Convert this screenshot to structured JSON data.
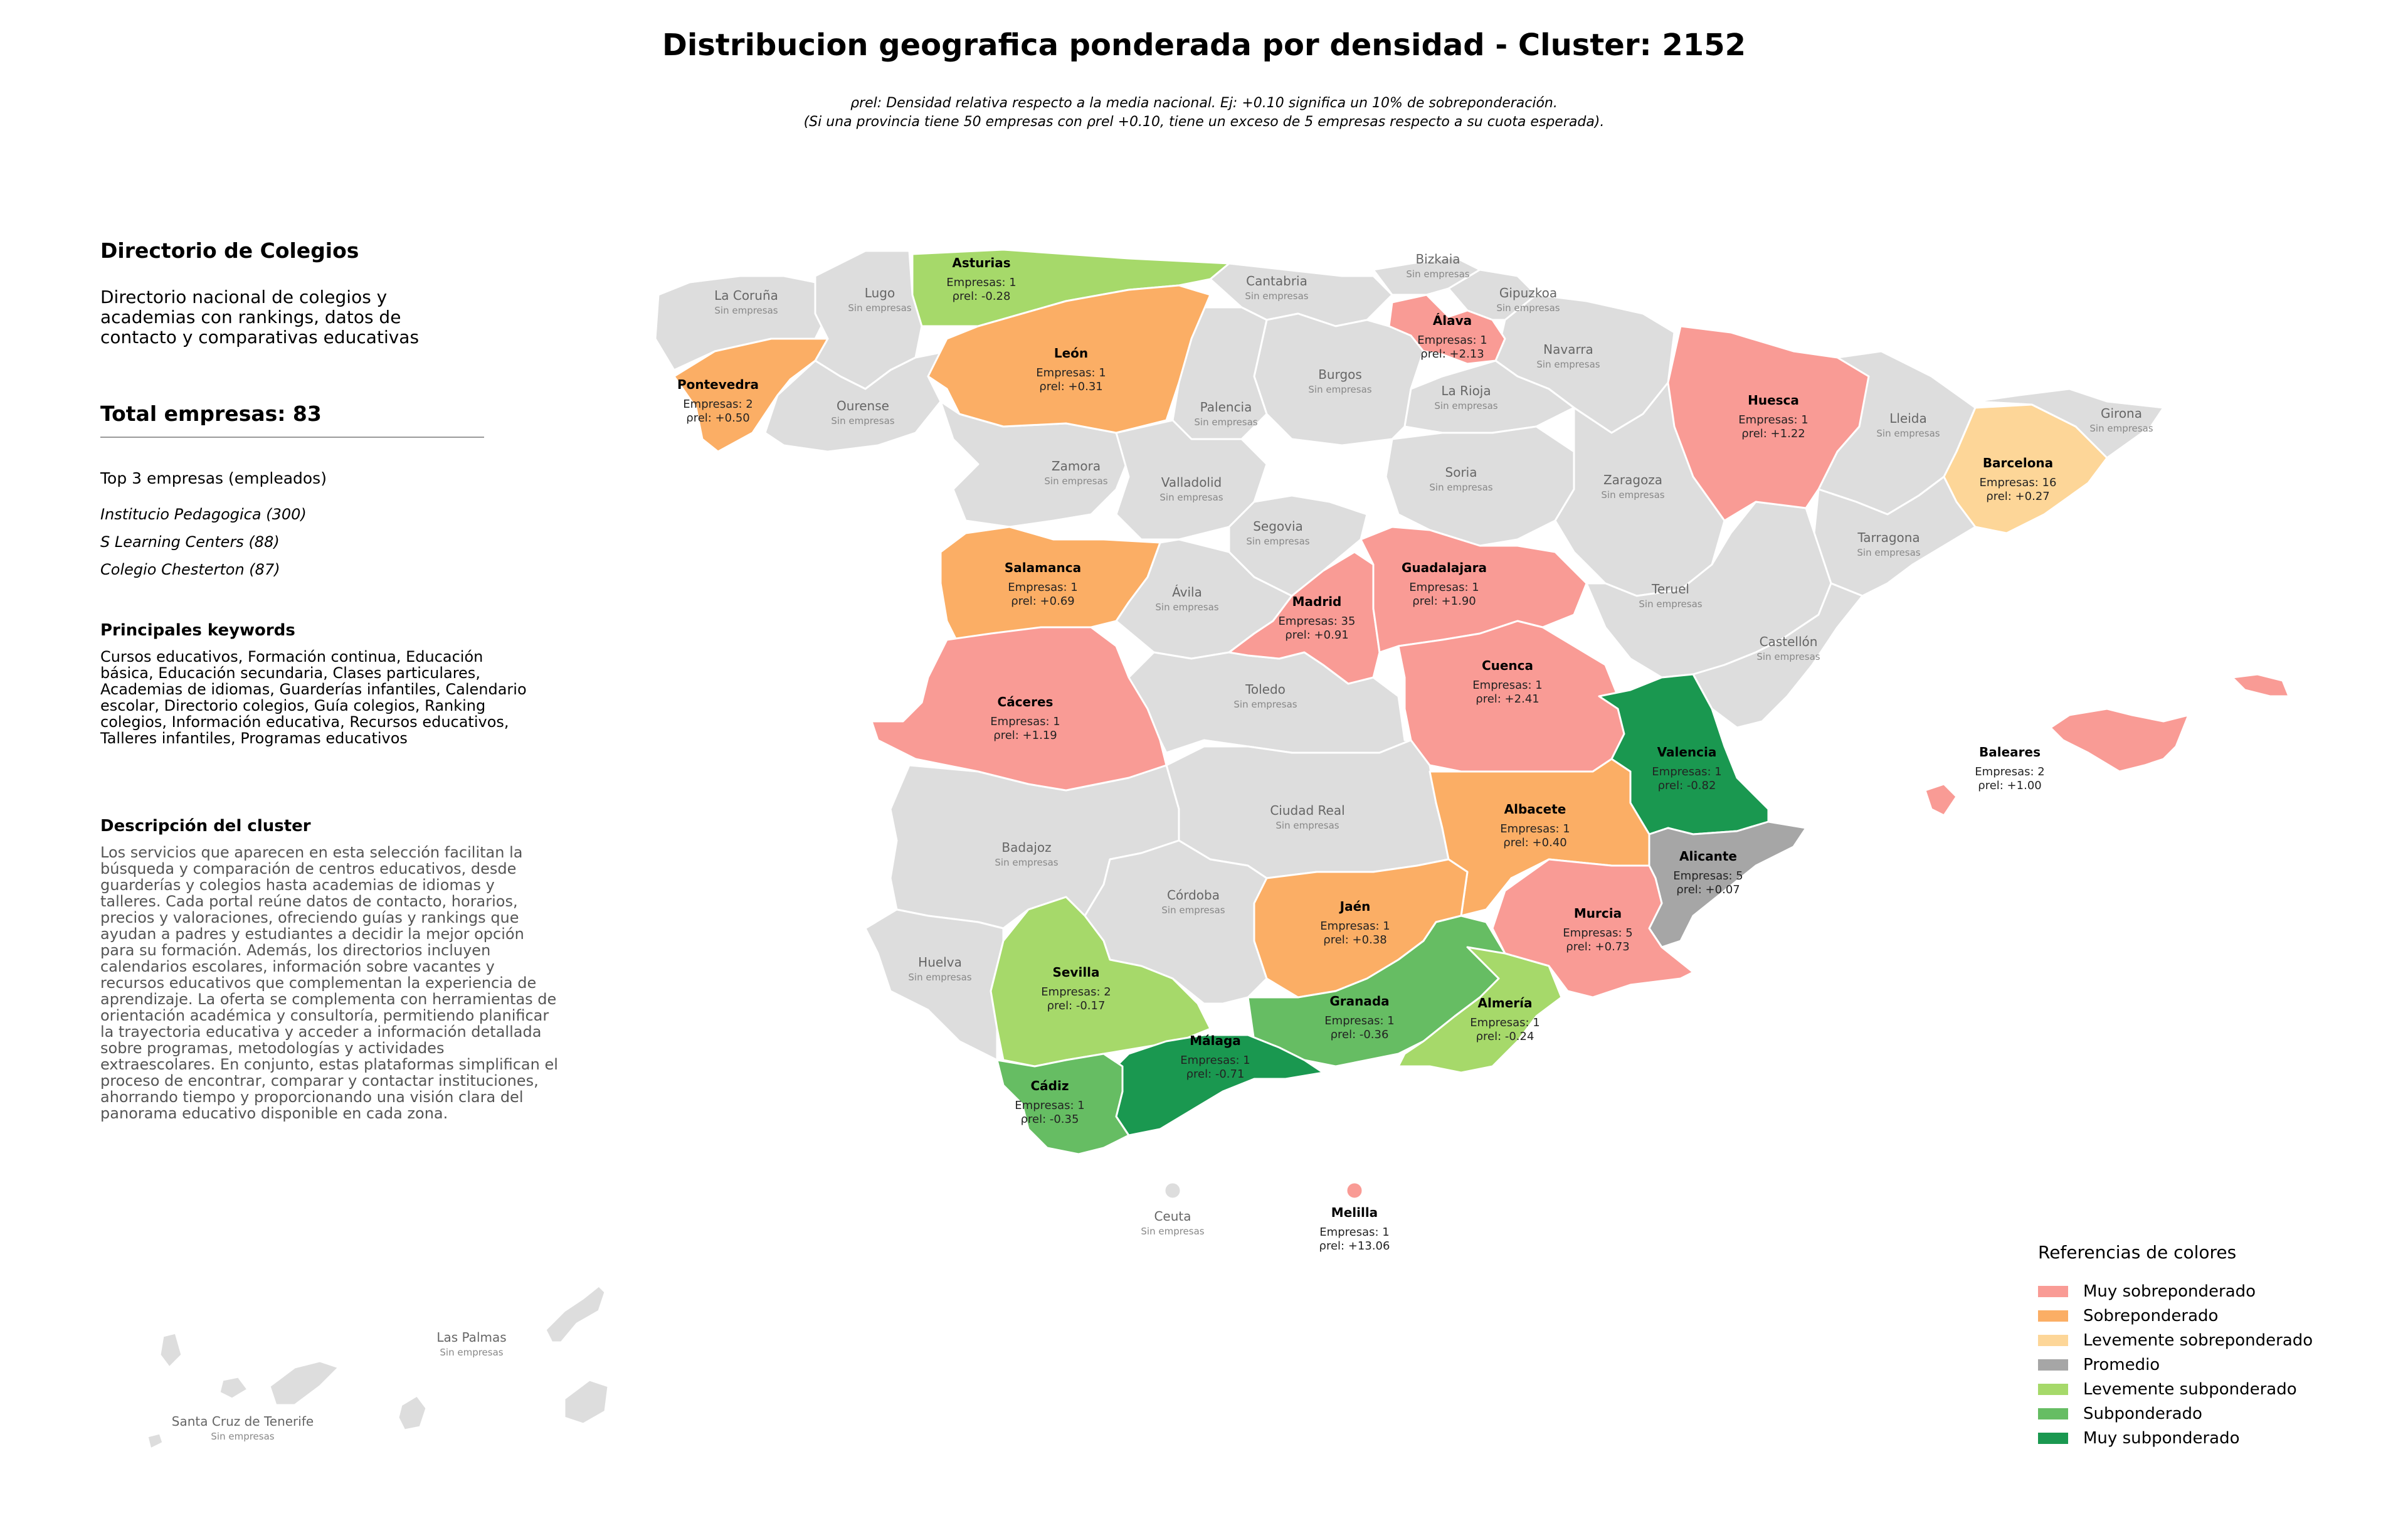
{
  "title": "Distribucion geografica ponderada por densidad - Cluster: 2152",
  "subtitle_line1": "ρrel: Densidad relativa respecto a la media nacional. Ej: +0.10 significa un 10% de sobreponderación.",
  "subtitle_line2": "(Si una provincia tiene 50 empresas con ρrel +0.10, tiene un exceso de 5 empresas respecto a su cuota esperada).",
  "panel": {
    "heading": "Directorio de Colegios",
    "description": "Directorio nacional de colegios y academias con rankings, datos de contacto y comparativas educativas",
    "total": "Total empresas: 83",
    "top_heading": "Top 3 empresas (empleados)",
    "top_companies": [
      "Institucio Pedagogica (300)",
      "S Learning Centers (88)",
      "Colegio Chesterton (87)"
    ],
    "keywords_heading": "Principales keywords",
    "keywords": "Cursos educativos, Formación continua, Educación básica, Educación secundaria, Clases particulares, Academias de idiomas, Guarderías infantiles, Calendario escolar, Directorio colegios, Guía colegios, Ranking colegios, Información educativa, Recursos educativos, Talleres infantiles, Programas educativos",
    "cluster_heading": "Descripción del cluster",
    "cluster_text": "Los servicios que aparecen en esta selección facilitan la búsqueda y comparación de centros educativos, desde guarderías y colegios hasta academias de idiomas y talleres. Cada portal reúne datos de contacto, horarios, precios y valoraciones, ofreciendo guías y rankings que ayudan a padres y estudiantes a decidir la mejor opción para su formación. Además, los directorios incluyen calendarios escolares, información sobre vacantes y recursos educativos que complementan la experiencia de aprendizaje. La oferta se complementa con herramientas de orientación académica y consultoría, permitiendo planificar la trayectoria educativa y acceder a información detallada sobre programas, metodologías y actividades extraescolares. En conjunto, estas plataformas simplifican el proceso de encontrar, comparar y contactar instituciones, ahorrando tiempo y proporcionando una visión clara del panorama educativo disponible en cada zona."
  },
  "colors": {
    "muy_sobre": "#f99b95",
    "sobre": "#fbae65",
    "leve_sobre": "#fdd698",
    "promedio": "#a6a6a6",
    "leve_sub": "#a6d96a",
    "sub": "#66bd63",
    "muy_sub": "#1a9850",
    "none": "#dddddd"
  },
  "provinces_with_data": [
    {
      "name": "Asturias",
      "empresas": "Empresas: 1",
      "rho": "ρrel: -0.28",
      "category": "leve_sub"
    },
    {
      "name": "León",
      "empresas": "Empresas: 1",
      "rho": "ρrel: +0.31",
      "category": "sobre"
    },
    {
      "name": "Pontevedra",
      "empresas": "Empresas: 2",
      "rho": "ρrel: +0.50",
      "category": "sobre"
    },
    {
      "name": "Álava",
      "empresas": "Empresas: 1",
      "rho": "ρrel: +2.13",
      "category": "muy_sobre"
    },
    {
      "name": "Huesca",
      "empresas": "Empresas: 1",
      "rho": "ρrel: +1.22",
      "category": "muy_sobre"
    },
    {
      "name": "Barcelona",
      "empresas": "Empresas: 16",
      "rho": "ρrel: +0.27",
      "category": "leve_sobre"
    },
    {
      "name": "Salamanca",
      "empresas": "Empresas: 1",
      "rho": "ρrel: +0.69",
      "category": "sobre"
    },
    {
      "name": "Madrid",
      "empresas": "Empresas: 35",
      "rho": "ρrel: +0.91",
      "category": "muy_sobre"
    },
    {
      "name": "Guadalajara",
      "empresas": "Empresas: 1",
      "rho": "ρrel: +1.90",
      "category": "muy_sobre"
    },
    {
      "name": "Cuenca",
      "empresas": "Empresas: 1",
      "rho": "ρrel: +2.41",
      "category": "muy_sobre"
    },
    {
      "name": "Cáceres",
      "empresas": "Empresas: 1",
      "rho": "ρrel: +1.19",
      "category": "muy_sobre"
    },
    {
      "name": "Valencia",
      "empresas": "Empresas: 1",
      "rho": "ρrel: -0.82",
      "category": "muy_sub"
    },
    {
      "name": "Baleares",
      "empresas": "Empresas: 2",
      "rho": "ρrel: +1.00",
      "category": "muy_sobre"
    },
    {
      "name": "Albacete",
      "empresas": "Empresas: 1",
      "rho": "ρrel: +0.40",
      "category": "sobre"
    },
    {
      "name": "Alicante",
      "empresas": "Empresas: 5",
      "rho": "ρrel: +0.07",
      "category": "promedio"
    },
    {
      "name": "Jaén",
      "empresas": "Empresas: 1",
      "rho": "ρrel: +0.38",
      "category": "sobre"
    },
    {
      "name": "Murcia",
      "empresas": "Empresas: 5",
      "rho": "ρrel: +0.73",
      "category": "muy_sobre"
    },
    {
      "name": "Sevilla",
      "empresas": "Empresas: 2",
      "rho": "ρrel: -0.17",
      "category": "leve_sub"
    },
    {
      "name": "Granada",
      "empresas": "Empresas: 1",
      "rho": "ρrel: -0.36",
      "category": "sub"
    },
    {
      "name": "Almería",
      "empresas": "Empresas: 1",
      "rho": "ρrel: -0.24",
      "category": "leve_sub"
    },
    {
      "name": "Málaga",
      "empresas": "Empresas: 1",
      "rho": "ρrel: -0.71",
      "category": "muy_sub"
    },
    {
      "name": "Cádiz",
      "empresas": "Empresas: 1",
      "rho": "ρrel: -0.35",
      "category": "sub"
    },
    {
      "name": "Melilla",
      "empresas": "Empresas: 1",
      "rho": "ρrel: +13.06",
      "category": "muy_sobre"
    }
  ],
  "provinces_without_data": [
    "La Coruña",
    "Lugo",
    "Cantabria",
    "Bizkaia",
    "Gipuzkoa",
    "Navarra",
    "Burgos",
    "La Rioja",
    "Palencia",
    "Ourense",
    "Zamora",
    "Valladolid",
    "Soria",
    "Zaragoza",
    "Lleida",
    "Girona",
    "Segovia",
    "Tarragona",
    "Ávila",
    "Teruel",
    "Castellón",
    "Toledo",
    "Ciudad Real",
    "Badajoz",
    "Córdoba",
    "Huelva",
    "Ceuta",
    "Las Palmas",
    "Santa Cruz de Tenerife"
  ],
  "sin_empresas": "Sin empresas",
  "legend": {
    "title": "Referencias de colores",
    "items": [
      {
        "label": "Muy sobreponderado",
        "color": "#f99b95"
      },
      {
        "label": "Sobreponderado",
        "color": "#fbae65"
      },
      {
        "label": "Levemente sobreponderado",
        "color": "#fdd698"
      },
      {
        "label": "Promedio",
        "color": "#a6a6a6"
      },
      {
        "label": "Levemente subponderado",
        "color": "#a6d96a"
      },
      {
        "label": "Subponderado",
        "color": "#66bd63"
      },
      {
        "label": "Muy subponderado",
        "color": "#1a9850"
      }
    ]
  }
}
